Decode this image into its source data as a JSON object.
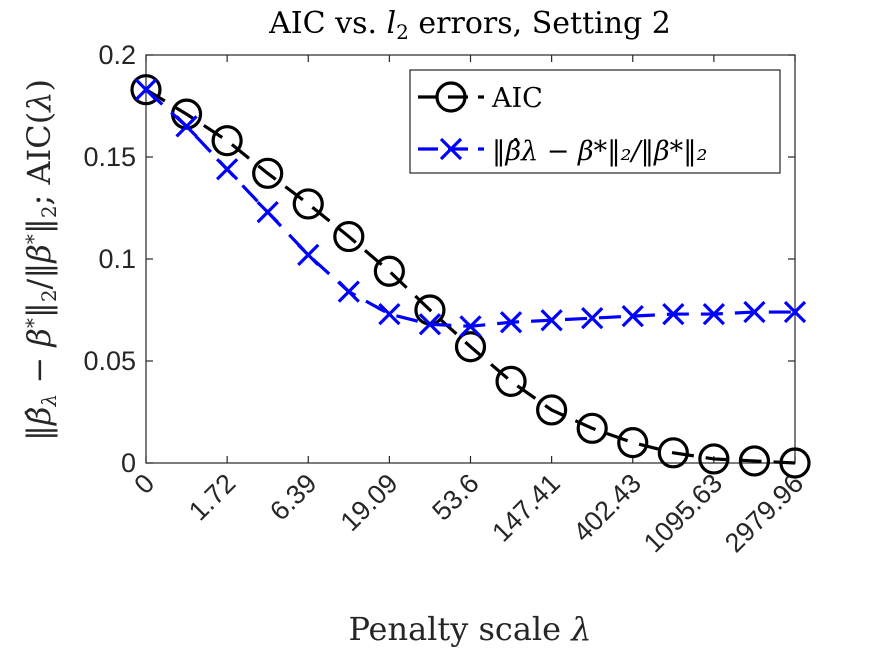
{
  "chart_data": {
    "type": "line",
    "title": "AIC vs. l₂ errors, Setting 2",
    "xlabel": "Penalty scale λ",
    "ylabel": "‖β̂λ − β*‖₂/‖β*‖₂; AIC(λ)",
    "x_tick_labels": [
      "0",
      "1.72",
      "6.39",
      "19.09",
      "53.6",
      "147.41",
      "402.43",
      "1095.63",
      "2979.96"
    ],
    "y_ticks": [
      0,
      0.05,
      0.1,
      0.15,
      0.2
    ],
    "y_tick_labels": [
      "0",
      "0.05",
      "0.1",
      "0.15",
      "0.2"
    ],
    "ylim": [
      0,
      0.2
    ],
    "grid": false,
    "legend_position": "top-right",
    "series": [
      {
        "name": "AIC",
        "color": "#000000",
        "marker": "circle",
        "line_style": "dashed",
        "values": [
          0.183,
          0.171,
          0.158,
          0.142,
          0.127,
          0.111,
          0.094,
          0.075,
          0.057,
          0.04,
          0.026,
          0.017,
          0.01,
          0.005,
          0.002,
          0.001,
          0.0
        ]
      },
      {
        "name": "‖β̂λ − β*‖₂/‖β*‖₂",
        "color": "#0000ff",
        "marker": "x",
        "line_style": "dashed",
        "values": [
          0.183,
          0.165,
          0.144,
          0.123,
          0.102,
          0.084,
          0.073,
          0.068,
          0.067,
          0.069,
          0.07,
          0.071,
          0.072,
          0.073,
          0.073,
          0.074,
          0.074
        ]
      }
    ]
  }
}
